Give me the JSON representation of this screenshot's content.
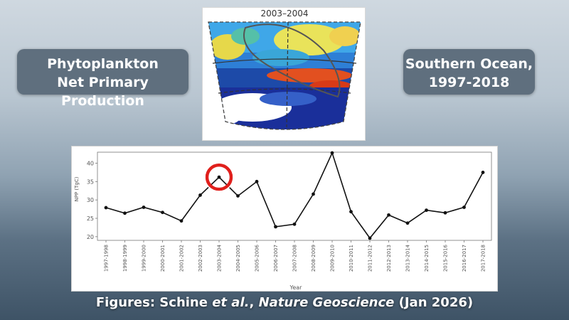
{
  "left_label": {
    "line1": "Phytoplankton",
    "line2": "Net Primary Production"
  },
  "right_label": {
    "line1": "Southern Ocean,",
    "line2": "1997-2018"
  },
  "map": {
    "title": "2003–2004"
  },
  "credit": {
    "prefix": "Figures: Schine ",
    "authors": "et al.",
    "sep": ", ",
    "journal": "Nature Geoscience",
    "date": " (Jan 2026)"
  },
  "colors": {
    "line": "#111111",
    "highlight": "#e0201c",
    "pill": "#5f6f7e"
  },
  "chart_data": {
    "type": "line",
    "title": "",
    "xlabel": "Year",
    "ylabel": "NPP (TgC)",
    "ylim": [
      19,
      43
    ],
    "yticks": [
      20,
      25,
      30,
      35,
      40
    ],
    "grid": false,
    "categories": [
      "1997-1998",
      "1998-1999",
      "1999-2000",
      "2000-2001",
      "2001-2002",
      "2002-2003",
      "2003-2004",
      "2004-2005",
      "2005-2006",
      "2006-2007",
      "2007-2008",
      "2008-2009",
      "2009-2010",
      "2010-2011",
      "2011-2012",
      "2012-2013",
      "2013-2014",
      "2014-2015",
      "2015-2016",
      "2016-2017",
      "2017-2018"
    ],
    "series": [
      {
        "values": [
          27.9,
          26.4,
          28.0,
          26.6,
          24.3,
          31.3,
          36.2,
          31.1,
          35.0,
          22.7,
          23.4,
          31.6,
          42.8,
          26.8,
          19.6,
          25.9,
          23.7,
          27.2,
          26.5,
          28.0,
          37.5
        ]
      }
    ],
    "highlight": {
      "category": "2003-2004"
    }
  }
}
